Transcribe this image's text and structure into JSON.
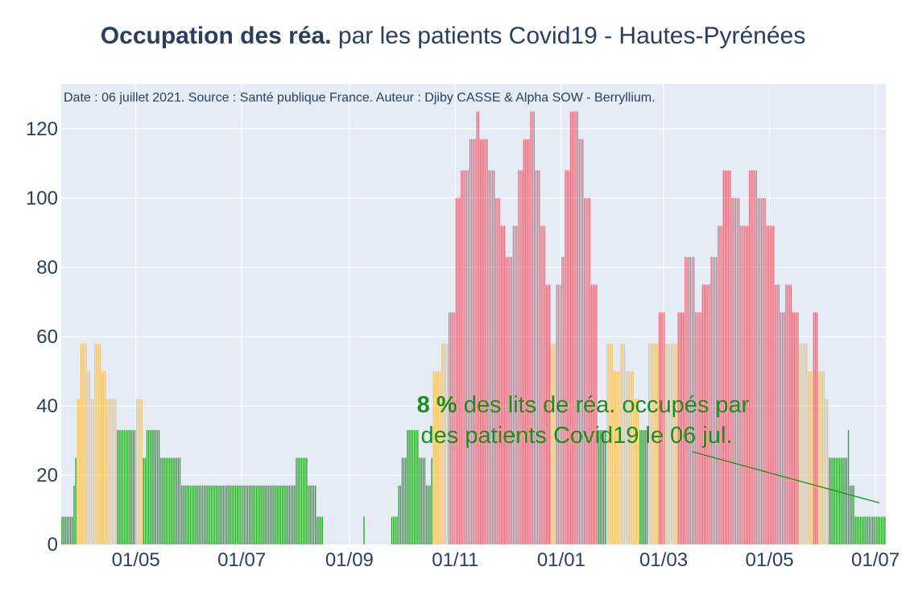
{
  "title_bold": "Occupation des réa.",
  "title_rest": " par les patients Covid19 - Hautes-Pyrénées",
  "colors": {
    "green": "#2ca02c",
    "orange": "#f5c46a",
    "red": "#e86a78",
    "plot_bg": "#e5ecf6",
    "annotation": "#1e8c1e"
  },
  "chart_data": {
    "type": "bar",
    "source_note": "Date : 06 juillet 2021. Source : Santé publique France. Auteur : Djiby CASSE & Alpha SOW - Berryllium.",
    "x_tick_labels": [
      "01/05",
      "01/07",
      "01/09",
      "01/11",
      "01/01",
      "01/03",
      "01/05",
      "01/07"
    ],
    "x_tick_dates": [
      "2020-05-01",
      "2020-07-01",
      "2020-09-01",
      "2020-11-01",
      "2021-01-01",
      "2021-03-01",
      "2021-05-01",
      "2021-07-01"
    ],
    "y_tick_labels": [
      "0",
      "20",
      "40",
      "60",
      "80",
      "100",
      "120"
    ],
    "y_ticks": [
      0,
      20,
      40,
      60,
      80,
      100,
      120
    ],
    "ylim": [
      0,
      133
    ],
    "xlim": [
      "2020-03-19",
      "2021-07-06"
    ],
    "thresholds": {
      "orange_from": 40,
      "red_from": 60
    },
    "series": [
      {
        "values": [
          {
            "from": "2020-03-19",
            "to": "2020-03-25",
            "y": 8
          },
          {
            "from": "2020-03-26",
            "to": "2020-03-26",
            "y": 17
          },
          {
            "from": "2020-03-27",
            "to": "2020-03-27",
            "y": 25
          },
          {
            "from": "2020-03-28",
            "to": "2020-03-29",
            "y": 42
          },
          {
            "from": "2020-03-30",
            "to": "2020-04-02",
            "y": 58
          },
          {
            "from": "2020-04-03",
            "to": "2020-04-04",
            "y": 50
          },
          {
            "from": "2020-04-05",
            "to": "2020-04-06",
            "y": 42
          },
          {
            "from": "2020-04-07",
            "to": "2020-04-10",
            "y": 58
          },
          {
            "from": "2020-04-11",
            "to": "2020-04-13",
            "y": 50
          },
          {
            "from": "2020-04-14",
            "to": "2020-04-19",
            "y": 42
          },
          {
            "from": "2020-04-20",
            "to": "2020-04-30",
            "y": 33
          },
          {
            "from": "2020-05-01",
            "to": "2020-05-04",
            "y": 42
          },
          {
            "from": "2020-05-05",
            "to": "2020-05-06",
            "y": 25
          },
          {
            "from": "2020-05-07",
            "to": "2020-05-14",
            "y": 33
          },
          {
            "from": "2020-05-15",
            "to": "2020-05-26",
            "y": 25
          },
          {
            "from": "2020-05-27",
            "to": "2020-07-31",
            "y": 17
          },
          {
            "from": "2020-08-01",
            "to": "2020-08-07",
            "y": 25
          },
          {
            "from": "2020-08-08",
            "to": "2020-08-12",
            "y": 17
          },
          {
            "from": "2020-08-13",
            "to": "2020-08-16",
            "y": 8
          },
          {
            "from": "2020-08-17",
            "to": "2020-09-08",
            "y": 0
          },
          {
            "from": "2020-09-09",
            "to": "2020-09-09",
            "y": 8
          },
          {
            "from": "2020-09-10",
            "to": "2020-09-24",
            "y": 0
          },
          {
            "from": "2020-09-25",
            "to": "2020-09-28",
            "y": 8
          },
          {
            "from": "2020-09-29",
            "to": "2020-09-30",
            "y": 17
          },
          {
            "from": "2020-10-01",
            "to": "2020-10-03",
            "y": 25
          },
          {
            "from": "2020-10-04",
            "to": "2020-10-10",
            "y": 33
          },
          {
            "from": "2020-10-11",
            "to": "2020-10-14",
            "y": 25
          },
          {
            "from": "2020-10-15",
            "to": "2020-10-17",
            "y": 17
          },
          {
            "from": "2020-10-18",
            "to": "2020-10-18",
            "y": 25
          },
          {
            "from": "2020-10-19",
            "to": "2020-10-23",
            "y": 50
          },
          {
            "from": "2020-10-24",
            "to": "2020-10-27",
            "y": 58
          },
          {
            "from": "2020-10-28",
            "to": "2020-10-31",
            "y": 67
          },
          {
            "from": "2020-11-01",
            "to": "2020-11-03",
            "y": 100
          },
          {
            "from": "2020-11-04",
            "to": "2020-11-08",
            "y": 108
          },
          {
            "from": "2020-11-09",
            "to": "2020-11-12",
            "y": 117
          },
          {
            "from": "2020-11-13",
            "to": "2020-11-14",
            "y": 125
          },
          {
            "from": "2020-11-15",
            "to": "2020-11-19",
            "y": 117
          },
          {
            "from": "2020-11-20",
            "to": "2020-11-23",
            "y": 108
          },
          {
            "from": "2020-11-24",
            "to": "2020-11-26",
            "y": 100
          },
          {
            "from": "2020-11-27",
            "to": "2020-11-29",
            "y": 92
          },
          {
            "from": "2020-11-30",
            "to": "2020-12-03",
            "y": 83
          },
          {
            "from": "2020-12-04",
            "to": "2020-12-06",
            "y": 92
          },
          {
            "from": "2020-12-07",
            "to": "2020-12-09",
            "y": 108
          },
          {
            "from": "2020-12-10",
            "to": "2020-12-13",
            "y": 117
          },
          {
            "from": "2020-12-14",
            "to": "2020-12-16",
            "y": 125
          },
          {
            "from": "2020-12-17",
            "to": "2020-12-19",
            "y": 108
          },
          {
            "from": "2020-12-20",
            "to": "2020-12-22",
            "y": 92
          },
          {
            "from": "2020-12-23",
            "to": "2020-12-25",
            "y": 75
          },
          {
            "from": "2020-12-26",
            "to": "2020-12-28",
            "y": 58
          },
          {
            "from": "2020-12-29",
            "to": "2020-12-31",
            "y": 75
          },
          {
            "from": "2021-01-01",
            "to": "2021-01-02",
            "y": 83
          },
          {
            "from": "2021-01-03",
            "to": "2021-01-05",
            "y": 108
          },
          {
            "from": "2021-01-06",
            "to": "2021-01-10",
            "y": 125
          },
          {
            "from": "2021-01-11",
            "to": "2021-01-13",
            "y": 117
          },
          {
            "from": "2021-01-14",
            "to": "2021-01-17",
            "y": 100
          },
          {
            "from": "2021-01-18",
            "to": "2021-01-21",
            "y": 75
          },
          {
            "from": "2021-01-22",
            "to": "2021-01-26",
            "y": 33
          },
          {
            "from": "2021-01-27",
            "to": "2021-01-30",
            "y": 58
          },
          {
            "from": "2021-01-31",
            "to": "2021-02-03",
            "y": 50
          },
          {
            "from": "2021-02-04",
            "to": "2021-02-06",
            "y": 58
          },
          {
            "from": "2021-02-07",
            "to": "2021-02-11",
            "y": 50
          },
          {
            "from": "2021-02-12",
            "to": "2021-02-14",
            "y": 42
          },
          {
            "from": "2021-02-15",
            "to": "2021-02-19",
            "y": 33
          },
          {
            "from": "2021-02-20",
            "to": "2021-02-25",
            "y": 58
          },
          {
            "from": "2021-02-26",
            "to": "2021-03-01",
            "y": 67
          },
          {
            "from": "2021-03-02",
            "to": "2021-03-08",
            "y": 58
          },
          {
            "from": "2021-03-09",
            "to": "2021-03-12",
            "y": 67
          },
          {
            "from": "2021-03-13",
            "to": "2021-03-18",
            "y": 83
          },
          {
            "from": "2021-03-19",
            "to": "2021-03-22",
            "y": 67
          },
          {
            "from": "2021-03-23",
            "to": "2021-03-27",
            "y": 75
          },
          {
            "from": "2021-03-28",
            "to": "2021-03-31",
            "y": 83
          },
          {
            "from": "2021-04-01",
            "to": "2021-04-03",
            "y": 92
          },
          {
            "from": "2021-04-04",
            "to": "2021-04-08",
            "y": 108
          },
          {
            "from": "2021-04-09",
            "to": "2021-04-13",
            "y": 100
          },
          {
            "from": "2021-04-14",
            "to": "2021-04-18",
            "y": 92
          },
          {
            "from": "2021-04-19",
            "to": "2021-04-23",
            "y": 108
          },
          {
            "from": "2021-04-24",
            "to": "2021-04-28",
            "y": 100
          },
          {
            "from": "2021-04-29",
            "to": "2021-05-03",
            "y": 92
          },
          {
            "from": "2021-05-04",
            "to": "2021-05-06",
            "y": 75
          },
          {
            "from": "2021-05-07",
            "to": "2021-05-09",
            "y": 67
          },
          {
            "from": "2021-05-10",
            "to": "2021-05-13",
            "y": 75
          },
          {
            "from": "2021-05-14",
            "to": "2021-05-17",
            "y": 67
          },
          {
            "from": "2021-05-18",
            "to": "2021-05-22",
            "y": 58
          },
          {
            "from": "2021-05-23",
            "to": "2021-05-25",
            "y": 50
          },
          {
            "from": "2021-05-26",
            "to": "2021-05-28",
            "y": 67
          },
          {
            "from": "2021-05-29",
            "to": "2021-06-01",
            "y": 50
          },
          {
            "from": "2021-06-02",
            "to": "2021-06-03",
            "y": 42
          },
          {
            "from": "2021-06-04",
            "to": "2021-06-14",
            "y": 25
          },
          {
            "from": "2021-06-15",
            "to": "2021-06-15",
            "y": 33
          },
          {
            "from": "2021-06-16",
            "to": "2021-06-18",
            "y": 17
          },
          {
            "from": "2021-06-19",
            "to": "2021-07-06",
            "y": 8
          }
        ]
      }
    ],
    "annotation": {
      "bold_part": "8  %",
      "line1_rest": " des lits de réa. occupés par",
      "line2": "des patients Covid19 le 06 jul.",
      "arrow_target": {
        "x": "2021-07-06",
        "y": 12
      }
    }
  }
}
